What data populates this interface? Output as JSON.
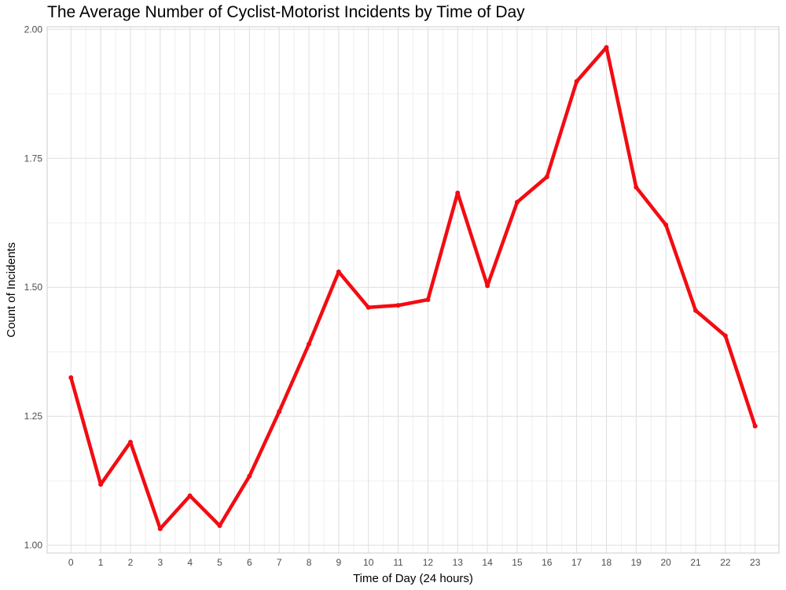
{
  "chart_data": {
    "type": "line",
    "title": "The Average Number of Cyclist-Motorist Incidents by Time of Day",
    "xlabel": "Time of Day (24 hours)",
    "ylabel": "Count of Incidents",
    "x": [
      0,
      1,
      2,
      3,
      4,
      5,
      6,
      7,
      8,
      9,
      10,
      11,
      12,
      13,
      14,
      15,
      16,
      17,
      18,
      19,
      20,
      21,
      22,
      23
    ],
    "series": [
      {
        "name": "",
        "values": [
          1.325,
          1.118,
          1.2,
          1.032,
          1.096,
          1.038,
          1.134,
          1.259,
          1.39,
          1.53,
          1.461,
          1.465,
          1.476,
          1.683,
          1.503,
          1.665,
          1.714,
          1.899,
          1.965,
          1.694,
          1.621,
          1.455,
          1.406,
          1.231
        ],
        "color": "#f20c12"
      }
    ],
    "xlim": [
      -0.8,
      23.8
    ],
    "ylim": [
      0.985,
      2.005
    ],
    "yticks": [
      1.0,
      1.25,
      1.5,
      1.75,
      2.0
    ],
    "ytick_labels": [
      "1.00",
      "1.25",
      "1.50",
      "1.75",
      "2.00"
    ],
    "xtick_labels": [
      "0",
      "1",
      "2",
      "3",
      "4",
      "5",
      "6",
      "7",
      "8",
      "9",
      "10",
      "11",
      "12",
      "13",
      "14",
      "15",
      "16",
      "17",
      "18",
      "19",
      "20",
      "21",
      "22",
      "23"
    ],
    "grid": true,
    "legend": "none",
    "colors": {
      "grid_major": "#dedede",
      "grid_minor": "#efefef",
      "panel_border": "#cccccc",
      "tick_text": "#4d4d4d"
    }
  }
}
